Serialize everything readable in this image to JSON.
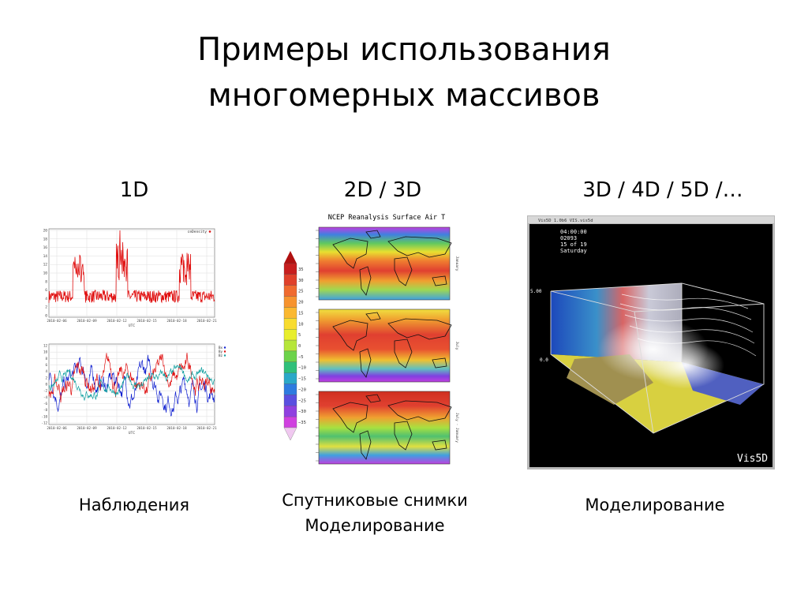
{
  "slide": {
    "title_line1": "Примеры использования",
    "title_line2": "многомерных массивов"
  },
  "columns": [
    {
      "heading": "1D",
      "caption_lines": [
        "Наблюдения"
      ]
    },
    {
      "heading": "2D / 3D",
      "caption_lines": [
        "Спутниковые снимки",
        "Моделирование"
      ]
    },
    {
      "heading": "3D / 4D / 5D /…",
      "caption_lines": [
        "Моделирование"
      ]
    }
  ],
  "figure_1d": {
    "top_legend": "ceDensity",
    "bottom_legend": [
      "Bx",
      "By",
      "Bz"
    ],
    "top_yticks": [
      "20",
      "18",
      "16",
      "14",
      "12",
      "10",
      "8",
      "6",
      "4",
      "2",
      "0"
    ],
    "bottom_yticks": [
      "12",
      "10",
      "8",
      "6",
      "4",
      "2",
      "0",
      "-2",
      "-4",
      "-6",
      "-8",
      "-10",
      "-12"
    ],
    "xticks": [
      "2010-02-06",
      "2010-02-09",
      "2010-02-12",
      "2010-02-15",
      "2010-02-18",
      "2010-02-21"
    ],
    "xlabel": "UTC",
    "colors": {
      "top": "#e01010",
      "bx": "#1020d0",
      "by": "#e01010",
      "bz": "#10a0a0"
    }
  },
  "figure_2d": {
    "title": "NCEP Reanalysis Surface Air T",
    "colorbar_ticks": [
      "35",
      "30",
      "25",
      "20",
      "15",
      "10",
      "5",
      "0",
      "−5",
      "−10",
      "−15",
      "−20",
      "−25",
      "−30",
      "−35"
    ],
    "colorbar_colors": [
      "#c81e1e",
      "#e0402a",
      "#f06a2e",
      "#f7932e",
      "#fbb830",
      "#f8dc2f",
      "#e8ee2c",
      "#b6e63a",
      "#6cd34a",
      "#2fc07a",
      "#2aa8c8",
      "#2e7be0",
      "#5a4fe0",
      "#9040e0",
      "#d040e0"
    ],
    "panel_side_labels": [
      "January",
      "July",
      "July - January"
    ]
  },
  "figure_3d": {
    "window_title": "Vis5D 1.0b6 VIS.vis5d",
    "info_lines": [
      "04:00:00",
      "02093",
      "15 of 19",
      "Saturday"
    ],
    "logo": "Vis5D",
    "axis_labels": [
      "5.00",
      "0.0"
    ]
  }
}
